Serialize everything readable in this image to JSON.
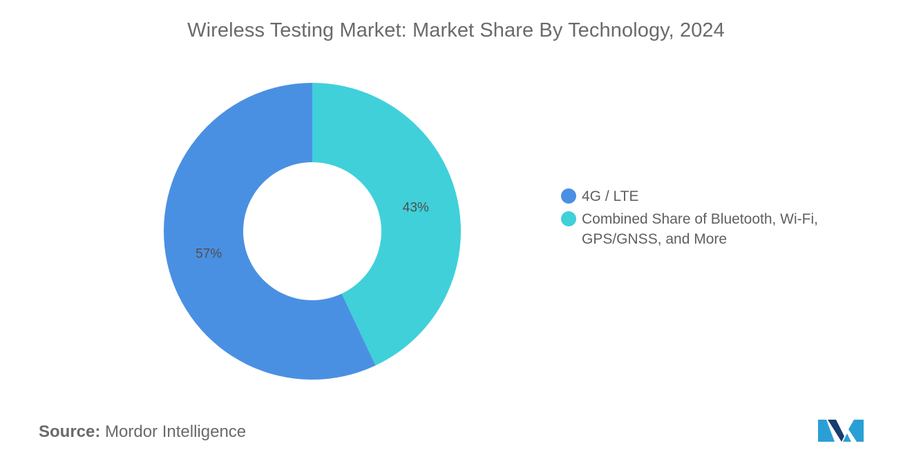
{
  "title": "Wireless Testing Market: Market Share By Technology, 2024",
  "source": {
    "key": "Source:",
    "value": "Mordor Intelligence"
  },
  "logo": {
    "name": "mordor-intelligence-logo",
    "colors": [
      "#2a9fd6",
      "#1a3c6e"
    ]
  },
  "chart_data": {
    "type": "pie",
    "variant": "donut",
    "legend_position": "right",
    "slices": [
      {
        "label": "4G / LTE",
        "value": 57,
        "display": "57%",
        "color": "#4a90e2"
      },
      {
        "label": "Combined Share of Bluetooth, Wi-Fi, GPS/GNSS, and More",
        "value": 43,
        "display": "43%",
        "color": "#40d0da"
      }
    ]
  }
}
